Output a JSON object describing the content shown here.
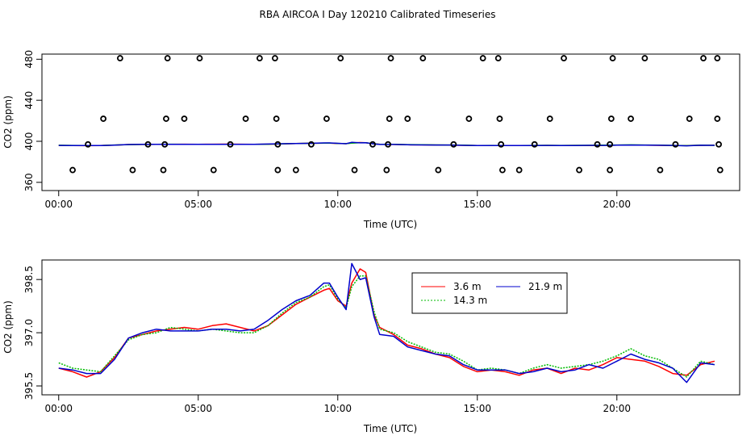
{
  "title": "RBA AIRCOA I  Day 120210  Calibrated Timeseries",
  "chart_data": [
    {
      "type": "scatter",
      "xlabel": "Time (UTC)",
      "ylabel": "CO2 (ppm)",
      "xlim": [
        -0.6,
        24.4
      ],
      "ylim": [
        352,
        485
      ],
      "xticks": [
        0,
        5,
        10,
        15,
        20
      ],
      "xtick_labels": [
        "00:00",
        "05:00",
        "10:00",
        "15:00",
        "20:00"
      ],
      "yticks": [
        360,
        400,
        440,
        480
      ],
      "ytick_labels": [
        "360",
        "400",
        "440",
        "480"
      ],
      "points": [
        {
          "x": 2.2,
          "y": 481
        },
        {
          "x": 3.9,
          "y": 481
        },
        {
          "x": 5.05,
          "y": 481
        },
        {
          "x": 7.2,
          "y": 481
        },
        {
          "x": 7.75,
          "y": 481
        },
        {
          "x": 10.1,
          "y": 481
        },
        {
          "x": 11.9,
          "y": 481
        },
        {
          "x": 13.05,
          "y": 481
        },
        {
          "x": 15.2,
          "y": 481
        },
        {
          "x": 15.75,
          "y": 481
        },
        {
          "x": 18.1,
          "y": 481
        },
        {
          "x": 19.85,
          "y": 481
        },
        {
          "x": 21.0,
          "y": 481
        },
        {
          "x": 23.1,
          "y": 481
        },
        {
          "x": 23.6,
          "y": 481
        },
        {
          "x": 1.6,
          "y": 422
        },
        {
          "x": 3.85,
          "y": 422
        },
        {
          "x": 4.5,
          "y": 422
        },
        {
          "x": 6.7,
          "y": 422
        },
        {
          "x": 7.8,
          "y": 422
        },
        {
          "x": 9.6,
          "y": 422
        },
        {
          "x": 11.85,
          "y": 422
        },
        {
          "x": 12.5,
          "y": 422
        },
        {
          "x": 14.7,
          "y": 422
        },
        {
          "x": 15.8,
          "y": 422
        },
        {
          "x": 17.6,
          "y": 422
        },
        {
          "x": 19.8,
          "y": 422
        },
        {
          "x": 20.5,
          "y": 422
        },
        {
          "x": 22.6,
          "y": 422
        },
        {
          "x": 23.6,
          "y": 422
        },
        {
          "x": 1.05,
          "y": 397
        },
        {
          "x": 3.2,
          "y": 397
        },
        {
          "x": 3.8,
          "y": 397
        },
        {
          "x": 6.15,
          "y": 397
        },
        {
          "x": 7.85,
          "y": 397
        },
        {
          "x": 9.05,
          "y": 397
        },
        {
          "x": 11.25,
          "y": 397
        },
        {
          "x": 11.8,
          "y": 397
        },
        {
          "x": 14.15,
          "y": 397
        },
        {
          "x": 15.85,
          "y": 397
        },
        {
          "x": 17.05,
          "y": 397
        },
        {
          "x": 19.3,
          "y": 397
        },
        {
          "x": 19.75,
          "y": 397
        },
        {
          "x": 22.1,
          "y": 397
        },
        {
          "x": 23.65,
          "y": 397
        },
        {
          "x": 0.5,
          "y": 372
        },
        {
          "x": 2.65,
          "y": 372
        },
        {
          "x": 3.75,
          "y": 372
        },
        {
          "x": 5.55,
          "y": 372
        },
        {
          "x": 7.85,
          "y": 372
        },
        {
          "x": 8.5,
          "y": 372
        },
        {
          "x": 10.6,
          "y": 372
        },
        {
          "x": 11.75,
          "y": 372
        },
        {
          "x": 13.6,
          "y": 372
        },
        {
          "x": 15.9,
          "y": 372
        },
        {
          "x": 16.5,
          "y": 372
        },
        {
          "x": 18.65,
          "y": 372
        },
        {
          "x": 19.75,
          "y": 372
        },
        {
          "x": 21.55,
          "y": 372
        },
        {
          "x": 23.7,
          "y": 372
        }
      ],
      "series": [
        {
          "name": "3.6 m",
          "color": "#ff0000",
          "values_ref": "panel2"
        },
        {
          "name": "14.3 m",
          "color": "#00bb00",
          "values_ref": "panel2"
        },
        {
          "name": "21.9 m",
          "color": "#0000cc",
          "values_ref": "panel2"
        }
      ]
    },
    {
      "type": "line",
      "xlabel": "Time (UTC)",
      "ylabel": "CO2 (ppm)",
      "xlim": [
        -0.6,
        24.4
      ],
      "ylim": [
        395.25,
        399.05
      ],
      "xticks": [
        0,
        5,
        10,
        15,
        20
      ],
      "xtick_labels": [
        "00:00",
        "05:00",
        "10:00",
        "15:00",
        "20:00"
      ],
      "yticks": [
        395.5,
        397.0,
        398.5
      ],
      "ytick_labels": [
        "395.5",
        "397.0",
        "398.5"
      ],
      "legend": {
        "position": "top-center"
      },
      "x": [
        0.0,
        0.5,
        1.0,
        1.5,
        2.0,
        2.5,
        3.0,
        3.5,
        4.0,
        4.5,
        5.0,
        5.5,
        6.0,
        6.5,
        7.0,
        7.5,
        8.0,
        8.5,
        9.0,
        9.5,
        9.7,
        10.0,
        10.3,
        10.5,
        10.8,
        11.0,
        11.3,
        11.5,
        12.0,
        12.5,
        13.0,
        13.5,
        14.0,
        14.5,
        15.0,
        15.5,
        16.0,
        16.5,
        17.0,
        17.5,
        18.0,
        18.5,
        19.0,
        19.5,
        20.0,
        20.5,
        21.0,
        21.5,
        22.0,
        22.5,
        23.0,
        23.5
      ],
      "series": [
        {
          "name": "3.6 m",
          "color": "#ff0000",
          "values": [
            396.0,
            395.9,
            395.75,
            395.9,
            396.3,
            396.85,
            396.95,
            397.05,
            397.1,
            397.15,
            397.1,
            397.2,
            397.25,
            397.15,
            397.05,
            397.2,
            397.5,
            397.8,
            398.0,
            398.2,
            398.25,
            397.9,
            397.75,
            398.4,
            398.8,
            398.7,
            397.5,
            397.15,
            396.95,
            396.65,
            396.55,
            396.4,
            396.3,
            396.05,
            395.9,
            395.95,
            395.9,
            395.8,
            395.95,
            396.0,
            395.85,
            396.0,
            395.95,
            396.1,
            396.3,
            396.25,
            396.2,
            396.05,
            395.85,
            395.8,
            396.1,
            396.2
          ]
        },
        {
          "name": "14.3 m",
          "color": "#00bb00",
          "values": [
            396.15,
            396.0,
            395.95,
            395.9,
            396.35,
            396.8,
            396.95,
            397.0,
            397.15,
            397.1,
            397.05,
            397.1,
            397.05,
            397.0,
            397.0,
            397.2,
            397.55,
            397.85,
            398.0,
            398.3,
            398.35,
            397.95,
            397.7,
            398.3,
            398.6,
            398.6,
            397.6,
            397.1,
            397.0,
            396.75,
            396.6,
            396.45,
            396.4,
            396.2,
            395.95,
            396.0,
            395.95,
            395.85,
            396.0,
            396.1,
            396.0,
            396.05,
            396.1,
            396.2,
            396.35,
            396.55,
            396.35,
            396.25,
            396.0,
            395.75,
            396.2,
            396.1
          ]
        },
        {
          "name": "21.9 m",
          "color": "#0000cc",
          "values": [
            396.0,
            395.95,
            395.85,
            395.85,
            396.25,
            396.85,
            397.0,
            397.1,
            397.05,
            397.05,
            397.05,
            397.1,
            397.1,
            397.05,
            397.1,
            397.35,
            397.65,
            397.9,
            398.05,
            398.4,
            398.4,
            398.0,
            397.65,
            398.95,
            398.5,
            398.55,
            397.45,
            396.95,
            396.9,
            396.6,
            396.5,
            396.4,
            396.35,
            396.1,
            395.95,
            395.95,
            395.95,
            395.85,
            395.9,
            396.0,
            395.9,
            395.95,
            396.1,
            396.0,
            396.2,
            396.4,
            396.25,
            396.15,
            396.0,
            395.6,
            396.15,
            396.1
          ]
        }
      ]
    }
  ]
}
